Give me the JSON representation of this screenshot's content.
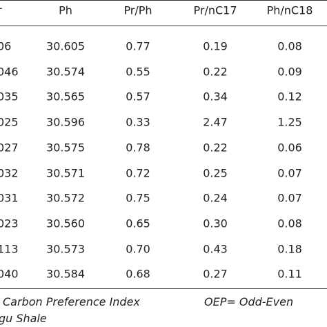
{
  "table": {
    "header": [
      "r",
      "Ph",
      "Pr/Ph",
      "Pr/nC17",
      "Ph/nC18"
    ],
    "rows": [
      [
        "06",
        "30.605",
        "0.77",
        "0.19",
        "0.08"
      ],
      [
        "046",
        "30.574",
        "0.55",
        "0.22",
        "0.09"
      ],
      [
        "035",
        "30.565",
        "0.57",
        "0.34",
        "0.12"
      ],
      [
        "025",
        "30.596",
        "0.33",
        "2.47",
        "1.25"
      ],
      [
        "027",
        "30.575",
        "0.78",
        "0.22",
        "0.06"
      ],
      [
        "032",
        "30.571",
        "0.72",
        "0.25",
        "0.07"
      ],
      [
        "031",
        "30.572",
        "0.75",
        "0.24",
        "0.07"
      ],
      [
        "023",
        "30.560",
        "0.65",
        "0.30",
        "0.08"
      ],
      [
        "113",
        "30.573",
        "0.70",
        "0.43",
        "0.18"
      ],
      [
        "040",
        "30.584",
        "0.68",
        "0.27",
        "0.11"
      ]
    ]
  },
  "footnote": {
    "line1_left": "Carbon Preference Index",
    "line1_right": "OEP= Odd-Even",
    "line2": "gu Shale"
  }
}
